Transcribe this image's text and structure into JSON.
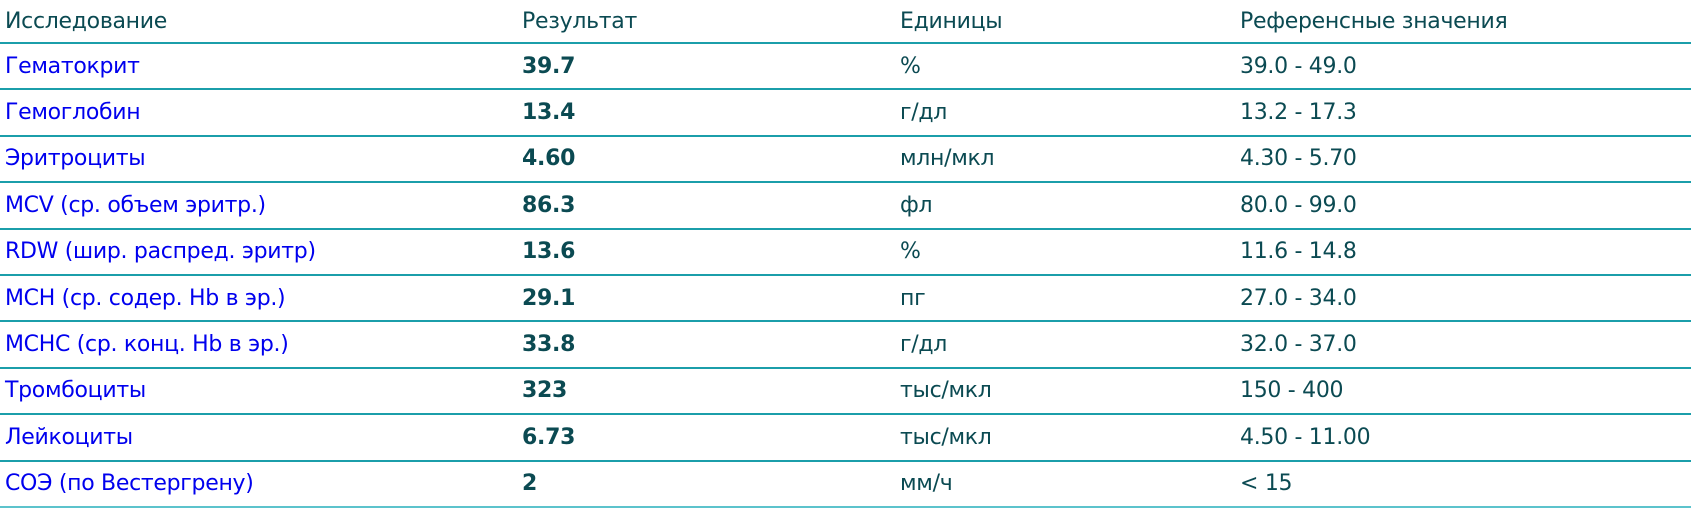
{
  "header": {
    "study": "Исследование",
    "result": "Результат",
    "units": "Единицы",
    "reference": "Референсные значения"
  },
  "rows": [
    {
      "name": "Гематокрит",
      "result": "39.7",
      "units": "%",
      "reference": "39.0 - 49.0"
    },
    {
      "name": "Гемоглобин",
      "result": "13.4",
      "units": "г/дл",
      "reference": "13.2 - 17.3"
    },
    {
      "name": "Эритроциты",
      "result": "4.60",
      "units": "млн/мкл",
      "reference": "4.30 - 5.70"
    },
    {
      "name": "MCV (ср. объем эритр.)",
      "result": "86.3",
      "units": "фл",
      "reference": "80.0 - 99.0"
    },
    {
      "name": "RDW (шир. распред. эритр)",
      "result": "13.6",
      "units": "%",
      "reference": "11.6 - 14.8"
    },
    {
      "name": "MCH (ср. содер. Hb в эр.)",
      "result": "29.1",
      "units": "пг",
      "reference": "27.0 - 34.0"
    },
    {
      "name": "MCHC (ср. конц. Hb в эр.)",
      "result": "33.8",
      "units": "г/дл",
      "reference": "32.0 - 37.0"
    },
    {
      "name": "Тромбоциты",
      "result": "323",
      "units": "тыс/мкл",
      "reference": "150 - 400"
    },
    {
      "name": "Лейкоциты",
      "result": "6.73",
      "units": "тыс/мкл",
      "reference": "4.50 - 11.00"
    },
    {
      "name": "СОЭ (по Вестергрену)",
      "result": "2",
      "units": "мм/ч",
      "reference": "< 15"
    }
  ],
  "colors": {
    "link": "#0000ee",
    "text": "#0b4a52",
    "divider": "#1b9eaa"
  }
}
